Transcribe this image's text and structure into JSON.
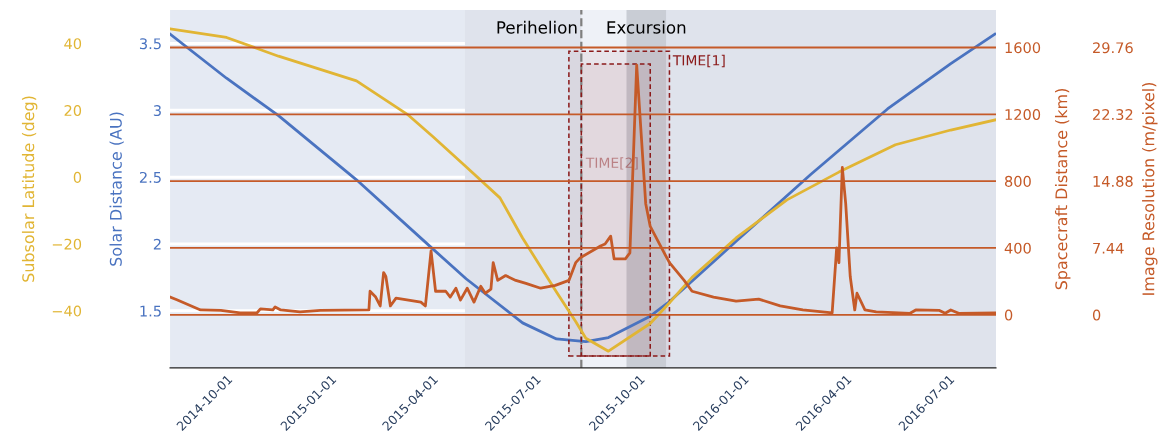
{
  "chart_data": {
    "type": "line",
    "ylabel": "Solar Distance (AU)",
    "y2label": "Subsolar Latitude (deg)",
    "y3label": "Spacecraft Distance (km)",
    "annotations": [
      "Image Resolution (m/pixel)",
      "0",
      "7.44",
      "14.88",
      "22.32",
      "29.76"
    ],
    "xlim": [
      "2014-08-12",
      "2016-08-12"
    ],
    "xticks": [
      "2014-10-01",
      "2015-01-01",
      "2015-04-01",
      "2015-07-01",
      "2015-10-01",
      "2016-01-01",
      "2016-04-01",
      "2016-07-01"
    ],
    "ylim": [
      1.073,
      3.75
    ],
    "yticks": [
      1.5,
      2,
      2.5,
      3,
      3.5
    ],
    "y2lim": [
      -57.1,
      50
    ],
    "y2ticks": [
      {
        "value": -40,
        "label": "−40"
      },
      {
        "value": -20,
        "label": "−20"
      },
      0,
      20,
      40
    ],
    "y3lim": [
      -318,
      1824
    ],
    "y3ticks": [
      0,
      400,
      800,
      1200,
      1600
    ],
    "grid": "y",
    "series": [
      {
        "color": "#4a73c0",
        "x": [
          "2014-08-12",
          "2014-10-01",
          "2014-11-16",
          "2015-01-24",
          "2015-04-02",
          "2015-05-01",
          "2015-06-20",
          "2015-07-20",
          "2015-08-15",
          "2015-09-04",
          "2015-10-11",
          "2015-10-28",
          "2015-12-26",
          "2016-03-01",
          "2016-05-08",
          "2016-07-03",
          "2016-08-11"
        ],
        "values": [
          3.57,
          3.24,
          2.96,
          2.48,
          1.96,
          1.74,
          1.41,
          1.29,
          1.27,
          1.3,
          1.46,
          1.57,
          2.02,
          2.52,
          3.01,
          3.35,
          3.57
        ]
      },
      {
        "color": "#e1b534",
        "axis": "y2",
        "x": [
          "2014-08-12",
          "2014-10-01",
          "2014-11-16",
          "2015-01-24",
          "2015-03-10",
          "2015-04-02",
          "2015-05-01",
          "2015-05-31",
          "2015-06-20",
          "2015-07-20",
          "2015-08-06",
          "2015-08-15",
          "2015-09-04",
          "2015-10-11",
          "2015-10-28",
          "2015-11-17",
          "2015-12-26",
          "2016-02-09",
          "2016-03-26",
          "2016-05-15",
          "2016-07-03",
          "2016-08-11"
        ],
        "values": [
          44.4,
          41.8,
          36.2,
          28.8,
          18.8,
          12,
          3.1,
          -6.2,
          -18.2,
          -34.4,
          -43.2,
          -48.2,
          -52.1,
          -43.8,
          -37.6,
          -30,
          -18.2,
          -6.8,
          1.5,
          9.7,
          14.1,
          17.1
        ]
      },
      {
        "color": "#c55a28",
        "axis": "y3",
        "x": [
          "2014-08-12",
          "2014-08-18",
          "2014-09-08",
          "2014-09-26",
          "2014-10-13",
          "2014-10-28",
          "2014-10-31",
          "2014-11-11",
          "2014-11-13",
          "2014-11-18",
          "2014-12-05",
          "2014-12-23",
          "2015-02-04",
          "2015-02-05",
          "2015-02-10",
          "2015-02-14",
          "2015-02-17",
          "2015-02-19",
          "2015-02-23",
          "2015-02-28",
          "2015-03-22",
          "2015-03-26",
          "2015-03-31",
          "2015-04-04",
          "2015-04-13",
          "2015-04-17",
          "2015-04-22",
          "2015-04-26",
          "2015-05-02",
          "2015-05-08",
          "2015-05-14",
          "2015-05-18",
          "2015-05-23",
          "2015-05-25",
          "2015-05-29",
          "2015-06-05",
          "2015-06-14",
          "2015-06-23",
          "2015-07-06",
          "2015-07-19",
          "2015-07-31",
          "2015-08-06",
          "2015-08-10",
          "2015-08-28",
          "2015-09-01",
          "2015-09-06",
          "2015-09-09",
          "2015-09-19",
          "2015-09-23",
          "2015-09-29",
          "2015-10-07",
          "2015-10-11",
          "2015-10-21",
          "2015-10-28",
          "2015-11-10",
          "2015-11-17",
          "2015-12-06",
          "2015-12-26",
          "2016-01-15",
          "2016-02-03",
          "2016-02-23",
          "2016-03-20",
          "2016-03-24",
          "2016-03-26",
          "2016-03-29",
          "2016-04-01",
          "2016-04-05",
          "2016-04-09",
          "2016-04-11",
          "2016-04-18",
          "2016-04-28",
          "2016-05-28",
          "2016-06-02",
          "2016-06-23",
          "2016-06-28",
          "2016-07-03",
          "2016-07-10",
          "2016-08-11"
        ],
        "values": [
          106,
          90,
          29,
          26,
          12,
          12,
          35,
          29,
          47,
          29,
          18,
          26,
          29,
          141,
          106,
          53,
          253,
          229,
          53,
          100,
          76,
          53,
          382,
          141,
          141,
          106,
          159,
          88,
          159,
          76,
          171,
          129,
          153,
          312,
          206,
          235,
          206,
          188,
          159,
          176,
          206,
          312,
          341,
          412,
          424,
          471,
          335,
          335,
          371,
          1494,
          665,
          529,
          400,
          312,
          206,
          141,
          106,
          82,
          94,
          53,
          29,
          12,
          400,
          312,
          882,
          665,
          229,
          29,
          129,
          29,
          18,
          9,
          29,
          26,
          9,
          29,
          9,
          12
        ]
      }
    ],
    "ref_lines": [
      {
        "axis": "x",
        "value": "2015-08-11",
        "label": "Perihelion",
        "color": "#7f7f7f",
        "line_style": "dashed"
      }
    ],
    "bands": [
      {
        "axis": "x",
        "from": "2015-04-30",
        "to": "2016-08-12",
        "color": "#dfe3ec"
      },
      {
        "axis": "x",
        "from": "2015-08-11",
        "to": "2015-10-11",
        "color": "#eef1f7"
      },
      {
        "axis": "x",
        "from": "2015-09-20",
        "to": "2015-10-25",
        "label": "Excursion",
        "color": "#c9cdd5"
      },
      {
        "axis": "x",
        "from": "2015-07-31",
        "to": "2015-10-28",
        "label": "TIME[1]",
        "color": "#8b1a1a"
      },
      {
        "axis": "x",
        "from": "2015-08-11",
        "to": "2015-10-11",
        "label": "TIME[2]",
        "color": "#8b1a1a"
      }
    ]
  }
}
